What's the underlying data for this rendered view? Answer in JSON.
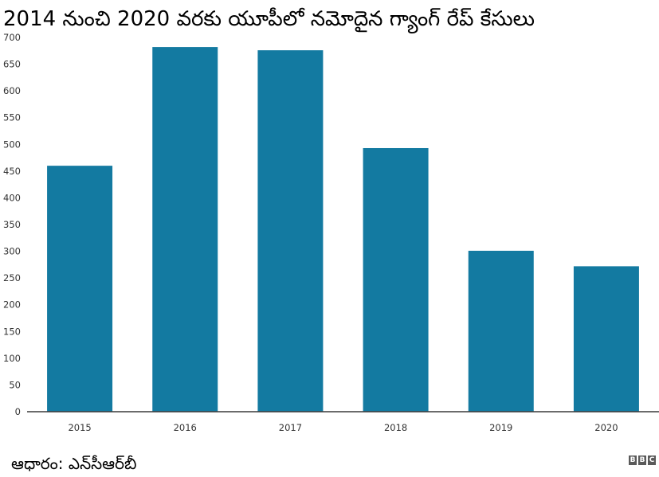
{
  "chart_data": {
    "type": "bar",
    "title": "2014 నుంచి 2020 వరకు యూపీలో నమోదైన గ్యాంగ్ రేప్ కేసులు",
    "categories": [
      "2015",
      "2016",
      "2017",
      "2018",
      "2019",
      "2020"
    ],
    "values": [
      460,
      682,
      676,
      493,
      301,
      272
    ],
    "yticks": [
      0,
      50,
      100,
      150,
      200,
      250,
      300,
      350,
      400,
      450,
      500,
      550,
      600,
      650,
      700
    ],
    "ylim": [
      0,
      700
    ],
    "xlabel": "",
    "ylabel": "",
    "grid": false,
    "bar_color": "#137aa1",
    "axis_color": "#3a3a3a"
  },
  "source_label": "ఆధారం: ఎన్‌సీఆర్‌బీ",
  "logo": [
    "B",
    "B",
    "C"
  ]
}
